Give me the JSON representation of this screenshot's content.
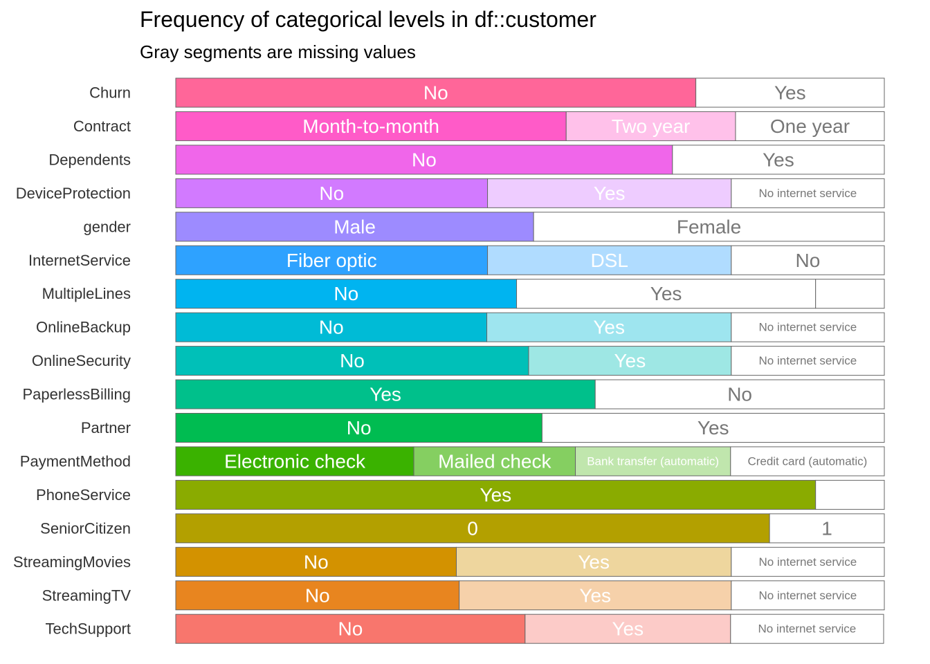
{
  "title": "Frequency of categorical levels in df::customer",
  "subtitle": "Gray segments are missing values",
  "chart_data": {
    "type": "bar",
    "orientation": "horizontal",
    "stacked": "proportional",
    "x_range": [
      0,
      1
    ],
    "grid": false,
    "legend": "none",
    "rows": [
      {
        "variable": "Churn",
        "color": "#ff6699",
        "segments": [
          {
            "label": "No",
            "value": 0.734
          },
          {
            "label": "Yes",
            "value": 0.266
          }
        ]
      },
      {
        "variable": "Contract",
        "color": "#ff5bc8",
        "segments": [
          {
            "label": "Month-to-month",
            "value": 0.551
          },
          {
            "label": "Two year",
            "value": 0.239
          },
          {
            "label": "One year",
            "value": 0.21
          }
        ]
      },
      {
        "variable": "Dependents",
        "color": "#f066ea",
        "segments": [
          {
            "label": "No",
            "value": 0.701
          },
          {
            "label": "Yes",
            "value": 0.299
          }
        ]
      },
      {
        "variable": "DeviceProtection",
        "color": "#d27aff",
        "segments": [
          {
            "label": "No",
            "value": 0.44
          },
          {
            "label": "Yes",
            "value": 0.344
          },
          {
            "label": "No internet service",
            "value": 0.216
          }
        ]
      },
      {
        "variable": "gender",
        "color": "#9d8bff",
        "segments": [
          {
            "label": "Male",
            "value": 0.505
          },
          {
            "label": "Female",
            "value": 0.495
          }
        ]
      },
      {
        "variable": "InternetService",
        "color": "#2ea2ff",
        "segments": [
          {
            "label": "Fiber optic",
            "value": 0.44
          },
          {
            "label": "DSL",
            "value": 0.344
          },
          {
            "label": "No",
            "value": 0.216
          }
        ]
      },
      {
        "variable": "MultipleLines",
        "color": "#00b4f0",
        "missing": 0.097,
        "segments": [
          {
            "label": "No",
            "value": 0.481
          },
          {
            "label": "Yes",
            "value": 0.422
          }
        ]
      },
      {
        "variable": "OnlineBackup",
        "color": "#00bbd6",
        "segments": [
          {
            "label": "No",
            "value": 0.439
          },
          {
            "label": "Yes",
            "value": 0.345
          },
          {
            "label": "No internet service",
            "value": 0.216
          }
        ]
      },
      {
        "variable": "OnlineSecurity",
        "color": "#00c0b8",
        "segments": [
          {
            "label": "No",
            "value": 0.498
          },
          {
            "label": "Yes",
            "value": 0.286
          },
          {
            "label": "No internet service",
            "value": 0.216
          }
        ]
      },
      {
        "variable": "PaperlessBilling",
        "color": "#00c08b",
        "segments": [
          {
            "label": "Yes",
            "value": 0.592
          },
          {
            "label": "No",
            "value": 0.408
          }
        ]
      },
      {
        "variable": "Partner",
        "color": "#00bc51",
        "segments": [
          {
            "label": "No",
            "value": 0.517
          },
          {
            "label": "Yes",
            "value": 0.483
          }
        ]
      },
      {
        "variable": "PaymentMethod",
        "color": "#3ab200",
        "segments": [
          {
            "label": "Electronic check",
            "value": 0.336
          },
          {
            "label": "Mailed check",
            "value": 0.228
          },
          {
            "label": "Bank transfer (automatic)",
            "value": 0.219
          },
          {
            "label": "Credit card (automatic)",
            "value": 0.217
          }
        ]
      },
      {
        "variable": "PhoneService",
        "color": "#8aab00",
        "missing": 0.097,
        "segments": [
          {
            "label": "Yes",
            "value": 0.903
          }
        ]
      },
      {
        "variable": "SeniorCitizen",
        "color": "#b3a000",
        "segments": [
          {
            "label": "0",
            "value": 0.838
          },
          {
            "label": "1",
            "value": 0.162
          }
        ]
      },
      {
        "variable": "StreamingMovies",
        "color": "#d39200",
        "segments": [
          {
            "label": "No",
            "value": 0.396
          },
          {
            "label": "Yes",
            "value": 0.388
          },
          {
            "label": "No internet service",
            "value": 0.216
          }
        ]
      },
      {
        "variable": "StreamingTV",
        "color": "#e8851f",
        "segments": [
          {
            "label": "No",
            "value": 0.4
          },
          {
            "label": "Yes",
            "value": 0.384
          },
          {
            "label": "No internet service",
            "value": 0.216
          }
        ]
      },
      {
        "variable": "TechSupport",
        "color": "#f8766d",
        "segments": [
          {
            "label": "No",
            "value": 0.493
          },
          {
            "label": "Yes",
            "value": 0.29
          },
          {
            "label": "No internet service",
            "value": 0.216
          }
        ]
      }
    ]
  }
}
